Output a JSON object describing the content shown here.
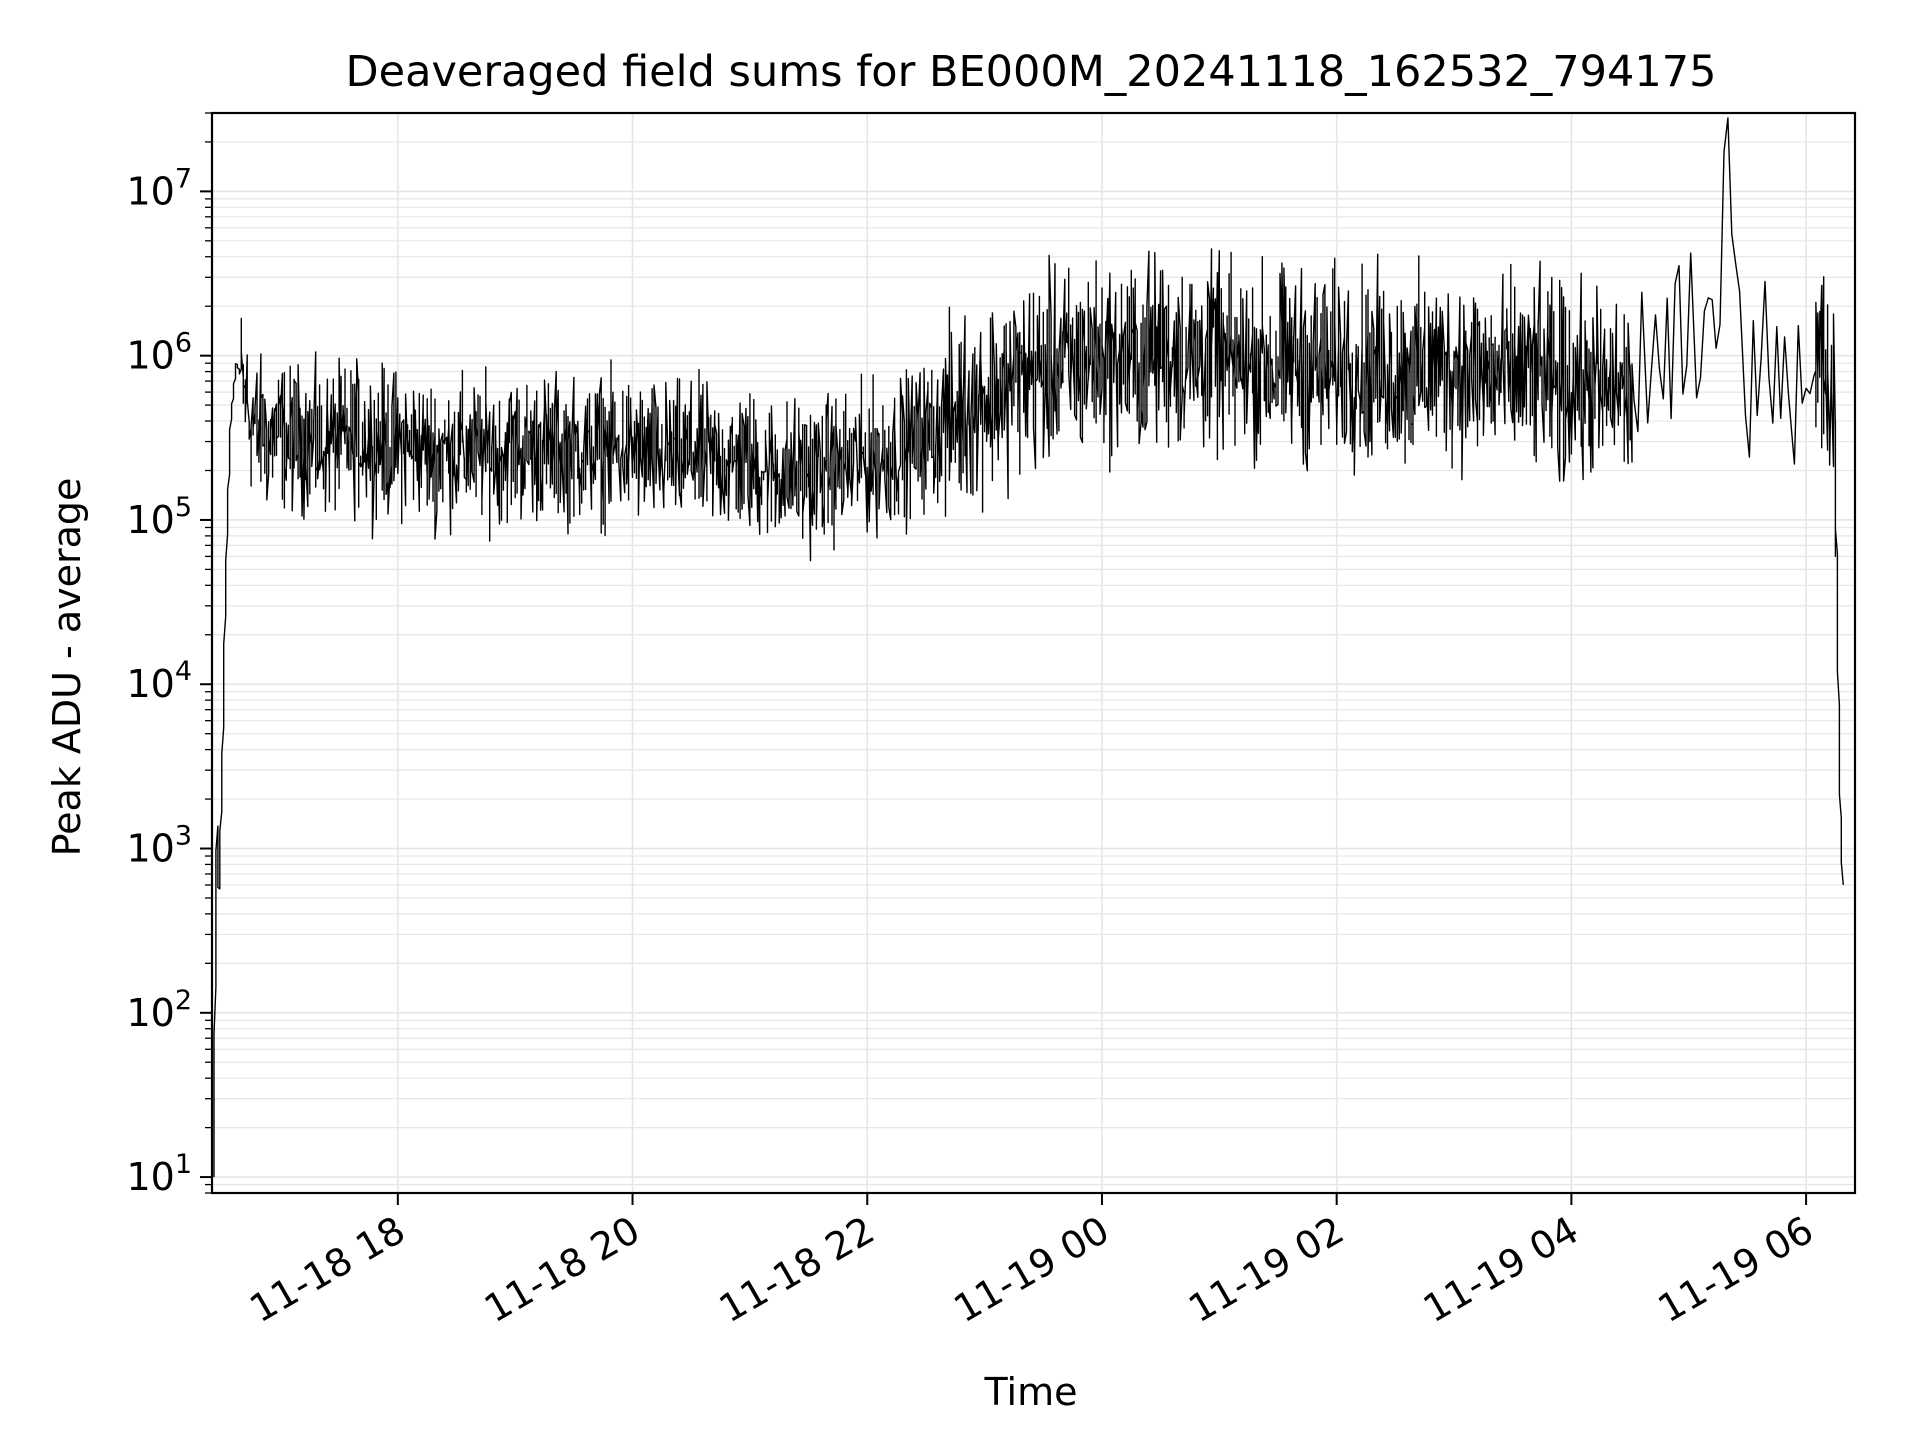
{
  "chart_data": {
    "type": "line",
    "title": "Deaveraged field sums for BE000M_20241118_162532_794175",
    "xlabel": "Time",
    "ylabel": "Peak ADU - average",
    "xscale": "date",
    "yscale": "log",
    "xlim": [
      "2024-11-18 16:25",
      "2024-11-19 06:25"
    ],
    "ylim": [
      8,
      30000000
    ],
    "grid": true,
    "grid_minor": true,
    "line_color": "#000000",
    "x_ticks": [
      {
        "value": "2024-11-18 18:00",
        "label": "11-18 18"
      },
      {
        "value": "2024-11-18 20:00",
        "label": "11-18 20"
      },
      {
        "value": "2024-11-18 22:00",
        "label": "11-18 22"
      },
      {
        "value": "2024-11-19 00:00",
        "label": "11-19 00"
      },
      {
        "value": "2024-11-19 02:00",
        "label": "11-19 02"
      },
      {
        "value": "2024-11-19 04:00",
        "label": "11-19 04"
      },
      {
        "value": "2024-11-19 06:00",
        "label": "11-19 06"
      }
    ],
    "y_ticks": [
      {
        "value": 10,
        "base": "10",
        "exp": "1"
      },
      {
        "value": 100,
        "base": "10",
        "exp": "2"
      },
      {
        "value": 1000,
        "base": "10",
        "exp": "3"
      },
      {
        "value": 10000,
        "base": "10",
        "exp": "4"
      },
      {
        "value": 100000,
        "base": "10",
        "exp": "5"
      },
      {
        "value": 1000000,
        "base": "10",
        "exp": "6"
      },
      {
        "value": 10000000,
        "base": "10",
        "exp": "7"
      }
    ],
    "series": [
      {
        "x": [
          "2024-11-18 16:26",
          "2024-11-18 16:27",
          "2024-11-18 16:28",
          "2024-11-18 16:29",
          "2024-11-18 16:31",
          "2024-11-18 16:33",
          "2024-11-18 16:35",
          "2024-11-18 16:38",
          "2024-11-18 16:41",
          "2024-11-18 16:45",
          "2024-11-18 16:50",
          "2024-11-18 16:55",
          "2024-11-18 17:00",
          "2024-11-18 17:05",
          "2024-11-18 17:10",
          "2024-11-18 17:20",
          "2024-11-18 17:30",
          "2024-11-18 17:40",
          "2024-11-18 17:50",
          "2024-11-18 18:00",
          "2024-11-18 18:15",
          "2024-11-18 18:30",
          "2024-11-18 18:45",
          "2024-11-18 19:00",
          "2024-11-18 19:15",
          "2024-11-18 19:30",
          "2024-11-18 19:45",
          "2024-11-18 20:00",
          "2024-11-18 20:15",
          "2024-11-18 20:30",
          "2024-11-18 20:45",
          "2024-11-18 21:00",
          "2024-11-18 21:15",
          "2024-11-18 21:30",
          "2024-11-18 21:45",
          "2024-11-18 22:00",
          "2024-11-18 22:15",
          "2024-11-18 22:30",
          "2024-11-18 22:45",
          "2024-11-18 23:00",
          "2024-11-18 23:15",
          "2024-11-18 23:30",
          "2024-11-18 23:45",
          "2024-11-19 00:00",
          "2024-11-19 00:15",
          "2024-11-19 00:30",
          "2024-11-19 00:45",
          "2024-11-19 01:00",
          "2024-11-19 01:15",
          "2024-11-19 01:30",
          "2024-11-19 01:45",
          "2024-11-19 02:00",
          "2024-11-19 02:15",
          "2024-11-19 02:30",
          "2024-11-19 02:45",
          "2024-11-19 03:00",
          "2024-11-19 03:15",
          "2024-11-19 03:30",
          "2024-11-19 03:45",
          "2024-11-19 04:00",
          "2024-11-19 04:15",
          "2024-11-19 04:30",
          "2024-11-19 04:45",
          "2024-11-19 05:00",
          "2024-11-19 05:15",
          "2024-11-19 05:20",
          "2024-11-19 05:30",
          "2024-11-19 05:45",
          "2024-11-19 06:00",
          "2024-11-19 06:10",
          "2024-11-19 06:15",
          "2024-11-19 06:17",
          "2024-11-19 06:18",
          "2024-11-19 06:19"
        ],
        "y": [
          10,
          130,
          1500,
          500,
          4000,
          80000,
          400000,
          900000,
          700000,
          400000,
          350000,
          300000,
          350000,
          300000,
          320000,
          280000,
          300000,
          320000,
          300000,
          290000,
          270000,
          260000,
          260000,
          270000,
          280000,
          260000,
          270000,
          270000,
          240000,
          250000,
          230000,
          220000,
          200000,
          190000,
          210000,
          230000,
          260000,
          320000,
          430000,
          560000,
          700000,
          820000,
          900000,
          950000,
          1000000,
          1050000,
          1000000,
          950000,
          900000,
          900000,
          850000,
          880000,
          850000,
          800000,
          820000,
          850000,
          800000,
          780000,
          720000,
          680000,
          620000,
          600000,
          800000,
          1000000,
          1200000,
          16000000,
          1100000,
          1000000,
          900000,
          850000,
          700000,
          10000,
          2000,
          600
        ]
      }
    ]
  }
}
